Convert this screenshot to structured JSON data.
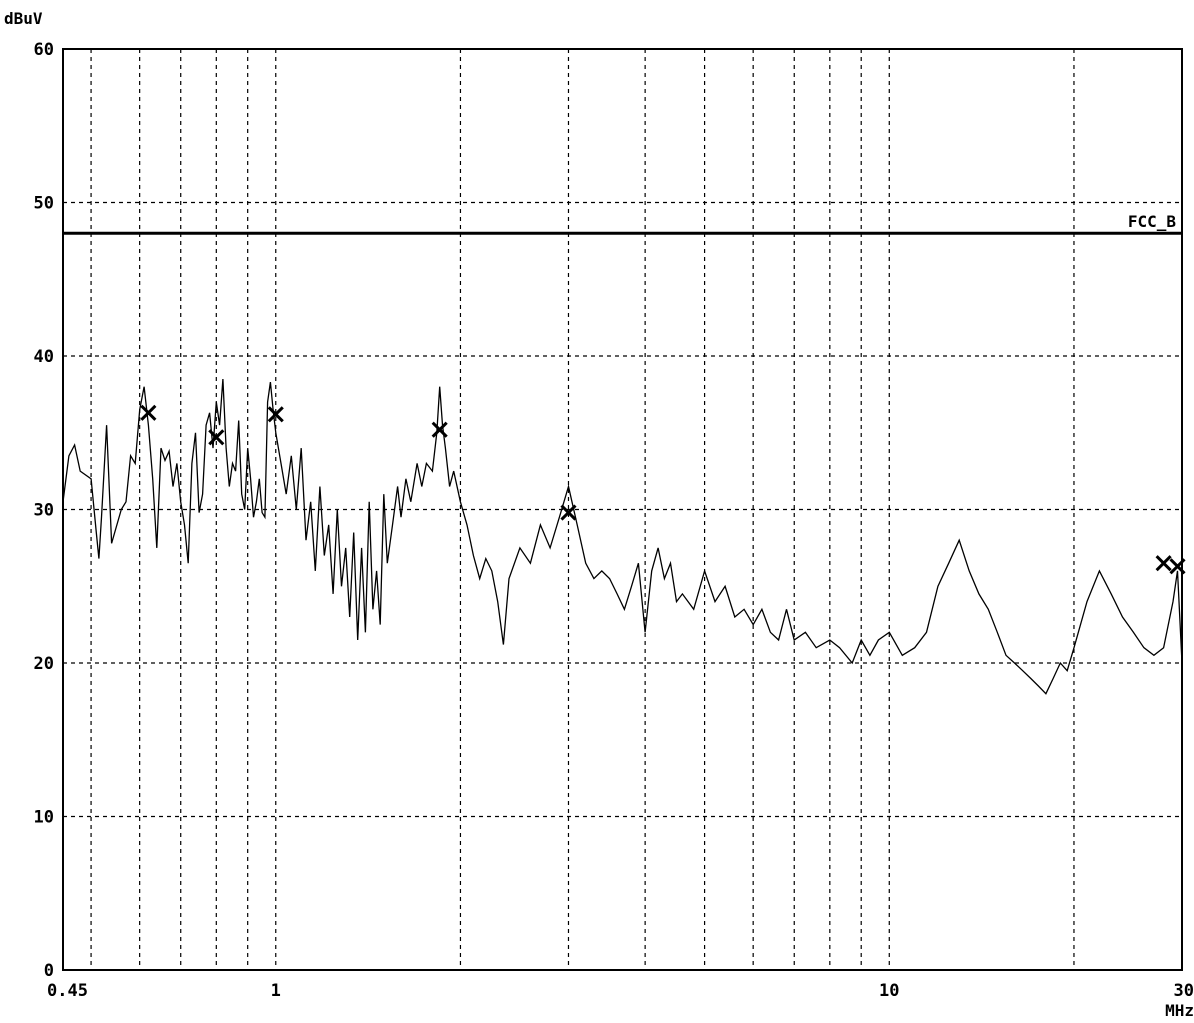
{
  "chart_data": {
    "type": "line",
    "title": "",
    "ylabel": "dBuV",
    "xlabel": "MHz",
    "xscale": "log",
    "xlim": [
      0.45,
      30
    ],
    "ylim": [
      0,
      60
    ],
    "grid": true,
    "x_ticks": [
      {
        "value": 0.45,
        "label": "0.45"
      },
      {
        "value": 1,
        "label": "1"
      },
      {
        "value": 10,
        "label": "10"
      },
      {
        "value": 30,
        "label": "30"
      }
    ],
    "x_grid": [
      0.5,
      0.6,
      0.7,
      0.8,
      0.9,
      1,
      2,
      3,
      4,
      5,
      6,
      7,
      8,
      9,
      10,
      20,
      30
    ],
    "y_ticks": [
      {
        "value": 0,
        "label": "0"
      },
      {
        "value": 10,
        "label": "10"
      },
      {
        "value": 20,
        "label": "20"
      },
      {
        "value": 30,
        "label": "30"
      },
      {
        "value": 40,
        "label": "40"
      },
      {
        "value": 50,
        "label": "50"
      },
      {
        "value": 60,
        "label": "60"
      }
    ],
    "limit_line": {
      "name": "FCC_B",
      "value": 48
    },
    "series": [
      {
        "points": [
          [
            0.45,
            30.5
          ],
          [
            0.46,
            33.5
          ],
          [
            0.47,
            34.2
          ],
          [
            0.48,
            32.5
          ],
          [
            0.5,
            32
          ],
          [
            0.51,
            28.5
          ],
          [
            0.515,
            26.8
          ],
          [
            0.52,
            29.5
          ],
          [
            0.53,
            35.5
          ],
          [
            0.54,
            27.8
          ],
          [
            0.56,
            30
          ],
          [
            0.57,
            30.5
          ],
          [
            0.58,
            33.5
          ],
          [
            0.59,
            33
          ],
          [
            0.6,
            36.5
          ],
          [
            0.61,
            38
          ],
          [
            0.62,
            35.5
          ],
          [
            0.63,
            32
          ],
          [
            0.64,
            27.5
          ],
          [
            0.65,
            34
          ],
          [
            0.66,
            33.2
          ],
          [
            0.67,
            33.8
          ],
          [
            0.68,
            31.5
          ],
          [
            0.69,
            33
          ],
          [
            0.7,
            30.5
          ],
          [
            0.71,
            29
          ],
          [
            0.72,
            26.5
          ],
          [
            0.73,
            33
          ],
          [
            0.74,
            35
          ],
          [
            0.75,
            29.8
          ],
          [
            0.76,
            31
          ],
          [
            0.77,
            35.5
          ],
          [
            0.78,
            36.3
          ],
          [
            0.79,
            34
          ],
          [
            0.8,
            37
          ],
          [
            0.81,
            35.5
          ],
          [
            0.82,
            38.5
          ],
          [
            0.83,
            34
          ],
          [
            0.84,
            31.5
          ],
          [
            0.85,
            33
          ],
          [
            0.86,
            32.5
          ],
          [
            0.87,
            35.8
          ],
          [
            0.88,
            31
          ],
          [
            0.89,
            30
          ],
          [
            0.9,
            34
          ],
          [
            0.91,
            32
          ],
          [
            0.92,
            29.5
          ],
          [
            0.93,
            30.5
          ],
          [
            0.94,
            32
          ],
          [
            0.95,
            29.8
          ],
          [
            0.96,
            29.5
          ],
          [
            0.97,
            37
          ],
          [
            0.98,
            38.3
          ],
          [
            0.99,
            36.5
          ],
          [
            1.0,
            35
          ],
          [
            1.02,
            33
          ],
          [
            1.04,
            31
          ],
          [
            1.06,
            33.5
          ],
          [
            1.08,
            30
          ],
          [
            1.1,
            34
          ],
          [
            1.12,
            28
          ],
          [
            1.14,
            30.5
          ],
          [
            1.16,
            26
          ],
          [
            1.18,
            31.5
          ],
          [
            1.2,
            27
          ],
          [
            1.22,
            29
          ],
          [
            1.24,
            24.5
          ],
          [
            1.26,
            30
          ],
          [
            1.28,
            25
          ],
          [
            1.3,
            27.5
          ],
          [
            1.32,
            23
          ],
          [
            1.34,
            28.5
          ],
          [
            1.36,
            21.5
          ],
          [
            1.38,
            27.5
          ],
          [
            1.4,
            22
          ],
          [
            1.42,
            30.5
          ],
          [
            1.44,
            23.5
          ],
          [
            1.46,
            26
          ],
          [
            1.48,
            22.5
          ],
          [
            1.5,
            31
          ],
          [
            1.52,
            26.5
          ],
          [
            1.55,
            29
          ],
          [
            1.58,
            31.5
          ],
          [
            1.6,
            29.5
          ],
          [
            1.63,
            32
          ],
          [
            1.66,
            30.5
          ],
          [
            1.7,
            33
          ],
          [
            1.73,
            31.5
          ],
          [
            1.76,
            33
          ],
          [
            1.8,
            32.5
          ],
          [
            1.83,
            35
          ],
          [
            1.85,
            38
          ],
          [
            1.87,
            35.5
          ],
          [
            1.89,
            34
          ],
          [
            1.92,
            31.5
          ],
          [
            1.95,
            32.5
          ],
          [
            2.0,
            30.5
          ],
          [
            2.05,
            29
          ],
          [
            2.1,
            27
          ],
          [
            2.15,
            25.5
          ],
          [
            2.2,
            26.8
          ],
          [
            2.25,
            26
          ],
          [
            2.3,
            24
          ],
          [
            2.35,
            21.2
          ],
          [
            2.4,
            25.5
          ],
          [
            2.5,
            27.5
          ],
          [
            2.6,
            26.5
          ],
          [
            2.7,
            29
          ],
          [
            2.8,
            27.5
          ],
          [
            2.9,
            29.5
          ],
          [
            3.0,
            31.5
          ],
          [
            3.1,
            29
          ],
          [
            3.2,
            26.5
          ],
          [
            3.3,
            25.5
          ],
          [
            3.4,
            26
          ],
          [
            3.5,
            25.5
          ],
          [
            3.6,
            24.5
          ],
          [
            3.7,
            23.5
          ],
          [
            3.8,
            25
          ],
          [
            3.9,
            26.5
          ],
          [
            4.0,
            22
          ],
          [
            4.1,
            26
          ],
          [
            4.2,
            27.5
          ],
          [
            4.3,
            25.5
          ],
          [
            4.4,
            26.5
          ],
          [
            4.5,
            24
          ],
          [
            4.6,
            24.5
          ],
          [
            4.8,
            23.5
          ],
          [
            5.0,
            26
          ],
          [
            5.2,
            24
          ],
          [
            5.4,
            25
          ],
          [
            5.6,
            23
          ],
          [
            5.8,
            23.5
          ],
          [
            6.0,
            22.5
          ],
          [
            6.2,
            23.5
          ],
          [
            6.4,
            22
          ],
          [
            6.6,
            21.5
          ],
          [
            6.8,
            23.5
          ],
          [
            7.0,
            21.5
          ],
          [
            7.3,
            22
          ],
          [
            7.6,
            21
          ],
          [
            8.0,
            21.5
          ],
          [
            8.3,
            21
          ],
          [
            8.7,
            20
          ],
          [
            9.0,
            21.5
          ],
          [
            9.3,
            20.5
          ],
          [
            9.6,
            21.5
          ],
          [
            10.0,
            22
          ],
          [
            10.5,
            20.5
          ],
          [
            11.0,
            21
          ],
          [
            11.5,
            22
          ],
          [
            12.0,
            25
          ],
          [
            12.5,
            26.5
          ],
          [
            13.0,
            28
          ],
          [
            13.5,
            26
          ],
          [
            14.0,
            24.5
          ],
          [
            14.5,
            23.5
          ],
          [
            15.0,
            22
          ],
          [
            15.5,
            20.5
          ],
          [
            16.0,
            20
          ],
          [
            16.5,
            19.5
          ],
          [
            17.0,
            19
          ],
          [
            17.5,
            18.5
          ],
          [
            18.0,
            18
          ],
          [
            18.5,
            19
          ],
          [
            19.0,
            20
          ],
          [
            19.5,
            19.5
          ],
          [
            20.0,
            21
          ],
          [
            21.0,
            24
          ],
          [
            22.0,
            26
          ],
          [
            23.0,
            24.5
          ],
          [
            24.0,
            23
          ],
          [
            25.0,
            22
          ],
          [
            26.0,
            21
          ],
          [
            27.0,
            20.5
          ],
          [
            28.0,
            21
          ],
          [
            29.0,
            24
          ],
          [
            29.5,
            26
          ],
          [
            30.0,
            20
          ]
        ]
      }
    ],
    "markers": [
      {
        "x": 0.62,
        "y": 36.3
      },
      {
        "x": 0.8,
        "y": 34.7
      },
      {
        "x": 1.0,
        "y": 36.2
      },
      {
        "x": 1.85,
        "y": 35.2
      },
      {
        "x": 3.0,
        "y": 29.8
      },
      {
        "x": 28.0,
        "y": 26.5
      },
      {
        "x": 29.5,
        "y": 26.3
      }
    ]
  }
}
